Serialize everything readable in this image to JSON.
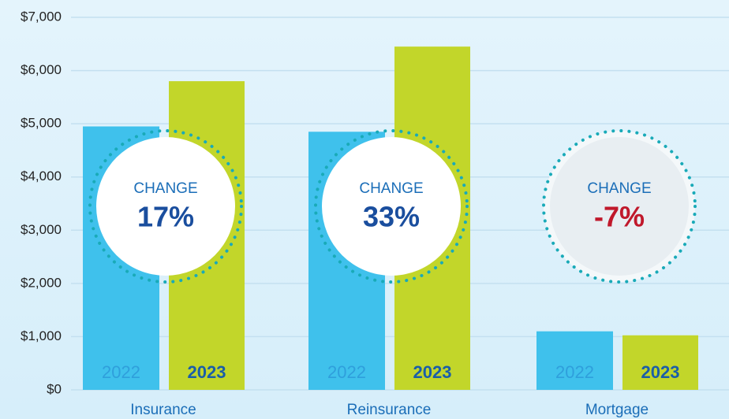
{
  "chart_data": {
    "type": "bar",
    "categories": [
      "Insurance",
      "Reinsurance",
      "Mortgage"
    ],
    "series": [
      {
        "name": "2022",
        "color": "#3fc1ec",
        "values": [
          4950,
          4850,
          1100
        ]
      },
      {
        "name": "2023",
        "color": "#c2d62a",
        "values": [
          5800,
          6450,
          1025
        ]
      }
    ],
    "ylim": [
      0,
      7000
    ],
    "yticks": [
      {
        "value": 0,
        "label": "$0"
      },
      {
        "value": 1000,
        "label": "$1,000"
      },
      {
        "value": 2000,
        "label": "$2,000"
      },
      {
        "value": 3000,
        "label": "$3,000"
      },
      {
        "value": 4000,
        "label": "$4,000"
      },
      {
        "value": 5000,
        "label": "$5,000"
      },
      {
        "value": 6000,
        "label": "$6,000"
      },
      {
        "value": 7000,
        "label": "$7,000"
      }
    ],
    "grid": true,
    "annotations": [
      {
        "title": "CHANGE",
        "text": "17%"
      },
      {
        "title": "CHANGE",
        "text": "33%"
      },
      {
        "title": "CHANGE",
        "text": "-7%"
      }
    ]
  }
}
